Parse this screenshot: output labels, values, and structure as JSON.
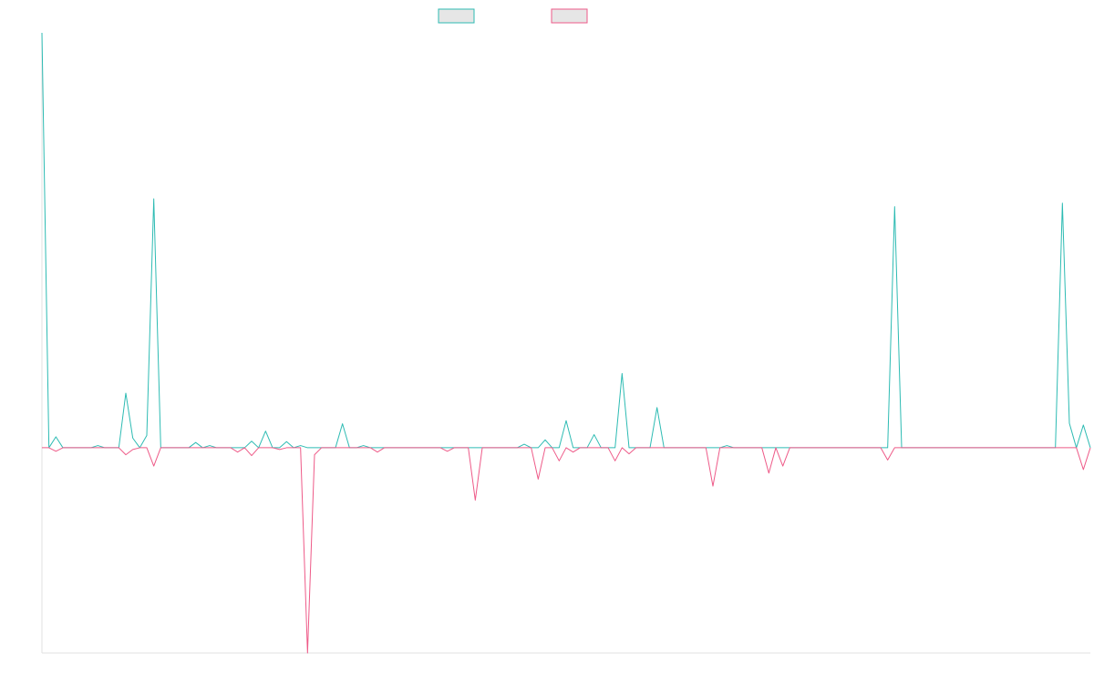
{
  "chart_data": {
    "type": "line",
    "title": "",
    "xlabel": "",
    "ylabel": "",
    "ylim": [
      -470,
      950
    ],
    "grid": false,
    "legend": "top-center",
    "colors": {
      "series_0": "#2dbbb3",
      "series_1": "#ee5a88",
      "legend_fill": "#e6e6e6",
      "axis": "#e0e0e0"
    },
    "x": [
      0,
      1,
      2,
      3,
      4,
      5,
      6,
      7,
      8,
      9,
      10,
      11,
      12,
      13,
      14,
      15,
      16,
      17,
      18,
      19,
      20,
      21,
      22,
      23,
      24,
      25,
      26,
      27,
      28,
      29,
      30,
      31,
      32,
      33,
      34,
      35,
      36,
      37,
      38,
      39,
      40,
      41,
      42,
      43,
      44,
      45,
      46,
      47,
      48,
      49,
      50,
      51,
      52,
      53,
      54,
      55,
      56,
      57,
      58,
      59,
      60,
      61,
      62,
      63,
      64,
      65,
      66,
      67,
      68,
      69,
      70,
      71,
      72,
      73,
      74,
      75,
      76,
      77,
      78,
      79,
      80,
      81,
      82,
      83,
      84,
      85,
      86,
      87,
      88,
      89,
      90,
      91,
      92,
      93,
      94,
      95,
      96,
      97,
      98,
      99,
      100,
      101,
      102,
      103,
      104,
      105,
      106,
      107,
      108,
      109,
      110,
      111,
      112,
      113,
      114,
      115,
      116,
      117,
      118,
      119,
      120,
      121,
      122,
      123,
      124,
      125,
      126,
      127,
      128,
      129,
      130,
      131,
      132,
      133,
      134,
      135,
      136,
      137,
      138,
      139,
      140,
      141,
      142,
      143,
      144,
      145,
      146,
      147,
      148,
      149,
      150
    ],
    "series": [
      {
        "name": "",
        "values": [
          950,
          0,
          25,
          0,
          0,
          0,
          0,
          0,
          5,
          0,
          0,
          0,
          125,
          22,
          0,
          28,
          570,
          0,
          0,
          0,
          0,
          0,
          12,
          0,
          5,
          0,
          0,
          0,
          0,
          0,
          15,
          0,
          38,
          0,
          0,
          14,
          0,
          5,
          0,
          0,
          0,
          0,
          0,
          55,
          0,
          0,
          5,
          0,
          0,
          0,
          0,
          0,
          0,
          0,
          0,
          0,
          0,
          0,
          0,
          0,
          0,
          0,
          0,
          0,
          0,
          0,
          0,
          0,
          0,
          8,
          0,
          0,
          18,
          0,
          0,
          62,
          0,
          0,
          0,
          30,
          0,
          0,
          0,
          170,
          0,
          0,
          0,
          0,
          92,
          0,
          0,
          0,
          0,
          0,
          0,
          0,
          0,
          0,
          5,
          0,
          0,
          0,
          0,
          0,
          0,
          0,
          0,
          0,
          0,
          0,
          0,
          0,
          0,
          0,
          0,
          0,
          0,
          0,
          0,
          0,
          0,
          0,
          552,
          0,
          0,
          0,
          0,
          0,
          0,
          0,
          0,
          0,
          0,
          0,
          0,
          0,
          0,
          0,
          0,
          0,
          0,
          0,
          0,
          0,
          0,
          0,
          560,
          56,
          0,
          52,
          0
        ]
      },
      {
        "name": "",
        "values": [
          0,
          0,
          -8,
          0,
          0,
          0,
          0,
          0,
          0,
          0,
          0,
          0,
          -16,
          -4,
          0,
          0,
          -42,
          0,
          0,
          0,
          0,
          0,
          0,
          0,
          0,
          0,
          0,
          0,
          -10,
          0,
          -18,
          0,
          0,
          0,
          -4,
          0,
          0,
          0,
          -470,
          -16,
          0,
          0,
          0,
          0,
          0,
          0,
          0,
          0,
          -10,
          0,
          0,
          0,
          0,
          0,
          0,
          0,
          0,
          0,
          -8,
          0,
          0,
          0,
          -120,
          0,
          0,
          0,
          0,
          0,
          0,
          0,
          0,
          -72,
          0,
          0,
          -30,
          0,
          -10,
          0,
          0,
          0,
          0,
          0,
          -30,
          0,
          -14,
          0,
          0,
          0,
          0,
          0,
          0,
          0,
          0,
          0,
          0,
          0,
          -88,
          0,
          0,
          0,
          0,
          0,
          0,
          0,
          -58,
          0,
          -42,
          0,
          0,
          0,
          0,
          0,
          0,
          0,
          0,
          0,
          0,
          0,
          0,
          0,
          0,
          -28,
          0,
          0,
          0,
          0,
          0,
          0,
          0,
          0,
          0,
          0,
          0,
          0,
          0,
          0,
          0,
          0,
          0,
          0,
          0,
          0,
          0,
          0,
          0,
          0,
          0,
          0,
          0,
          -50,
          0
        ]
      }
    ]
  }
}
